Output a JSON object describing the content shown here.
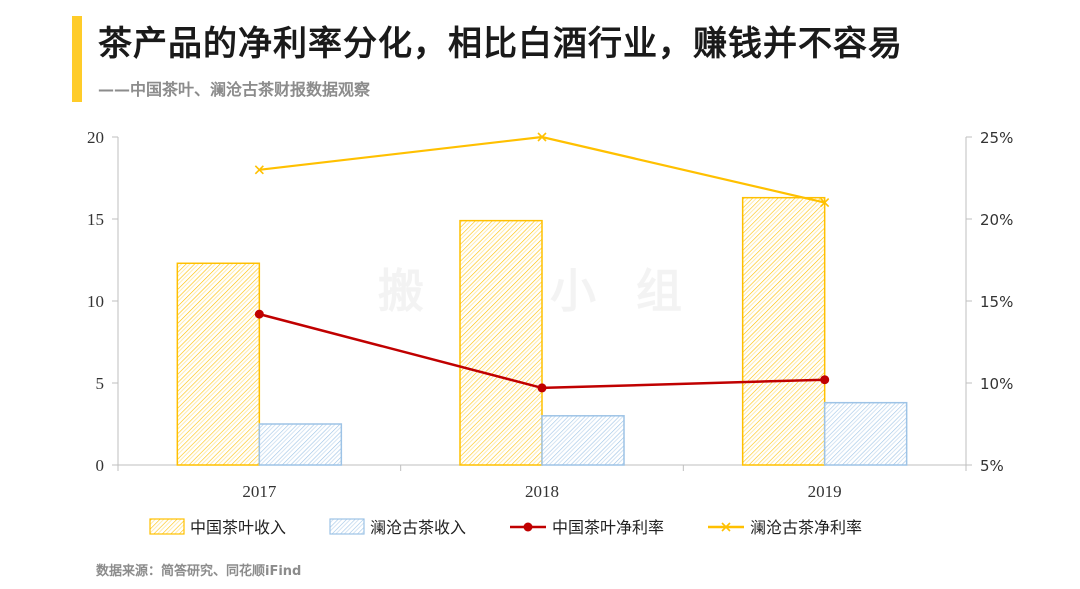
{
  "header": {
    "title": "茶产品的净利率分化，相比白酒行业，赚钱并不容易",
    "subtitle": "——中国茶叶、澜沧古茶财报数据观察"
  },
  "footer": {
    "source": "数据来源：简答研究、同花顺iFind"
  },
  "watermark": "搬 砖 小 组",
  "colors": {
    "accent": "#FFCC29",
    "yellow": "#FFC000",
    "blue": "#9DC3E6",
    "red": "#C00000"
  },
  "chart_data": {
    "type": "bar",
    "categories": [
      "2017",
      "2018",
      "2019"
    ],
    "series": [
      {
        "name": "中国茶叶收入",
        "kind": "bar",
        "axis": "left",
        "values": [
          12.3,
          14.9,
          16.3
        ]
      },
      {
        "name": "澜沧古茶收入",
        "kind": "bar",
        "axis": "left",
        "values": [
          2.5,
          3.0,
          3.8
        ]
      },
      {
        "name": "中国茶叶净利率",
        "kind": "line",
        "axis": "right",
        "values": [
          14.2,
          9.7,
          10.2
        ]
      },
      {
        "name": "澜沧古茶净利率",
        "kind": "line",
        "axis": "right",
        "values": [
          23.0,
          25.0,
          21.0
        ]
      }
    ],
    "ylim_left": [
      0,
      20
    ],
    "yticks_left": [
      "0",
      "5",
      "10",
      "15",
      "20"
    ],
    "ylim_right": [
      5,
      25
    ],
    "yticks_right": [
      "5%",
      "10%",
      "15%",
      "20%",
      "25%"
    ],
    "grid": false,
    "legend_position": "bottom"
  }
}
